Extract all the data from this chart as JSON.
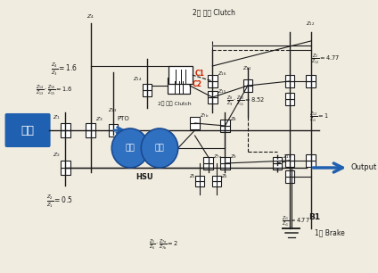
{
  "bg_color": "#f0ece0",
  "lc": "#1a1a1a",
  "engine_label": "엔진",
  "engine_color": "#2060b0",
  "hsu_pump_label": "펜프",
  "hsu_motor_label": "모터",
  "hsu_label": "HSU",
  "hsu_color": "#3070c0",
  "output_label": "Output",
  "output_color": "#2060b0",
  "c1_label": "C1",
  "c2_label": "C2",
  "b1_label": "B1",
  "pto_label": "PTO",
  "clutch1_title": "2단 전진 Clutch",
  "clutch2_label": "2단 후진 Clutch",
  "brake1_label": "1단 Brake",
  "arrow_color": "#2060b0"
}
